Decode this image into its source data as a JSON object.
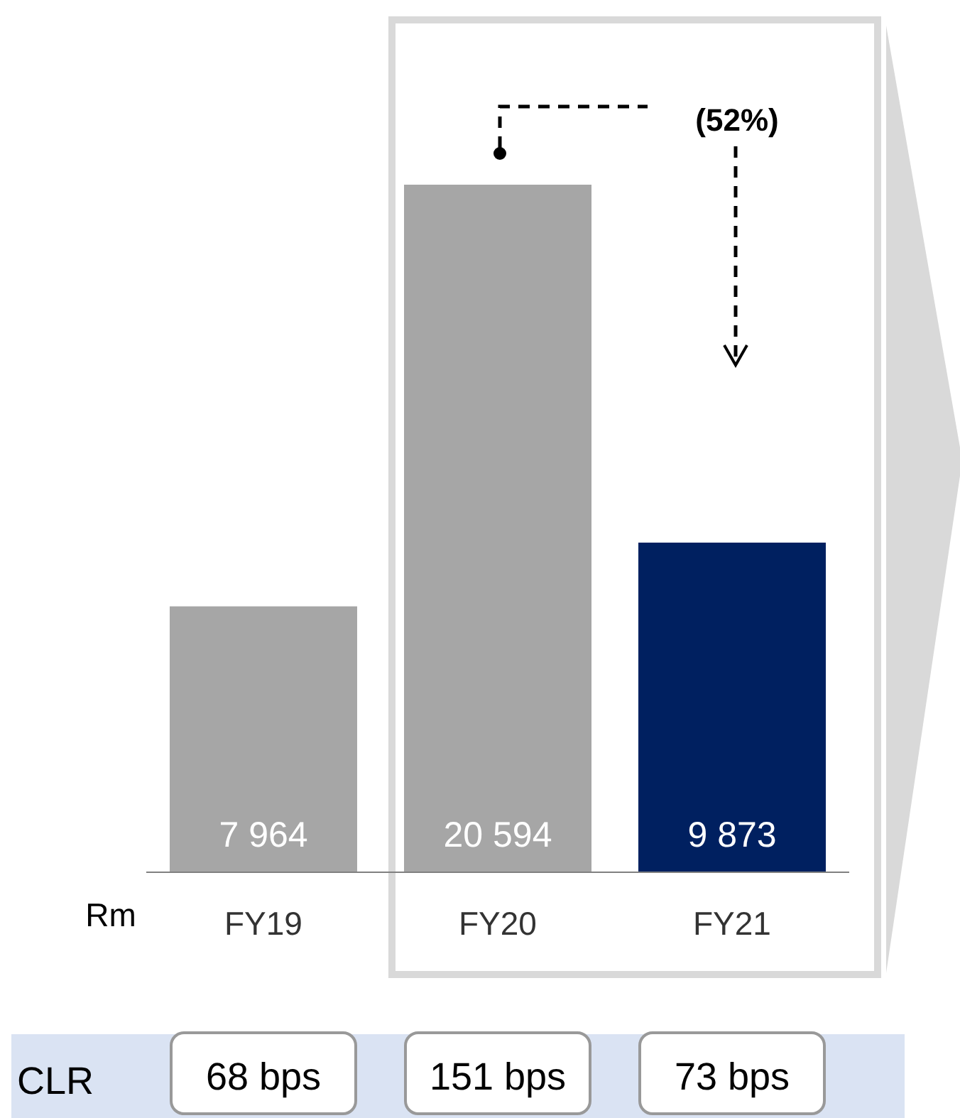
{
  "chart_data": {
    "type": "bar",
    "ylabel": "Rm",
    "categories": [
      "FY19",
      "FY20",
      "FY21"
    ],
    "values": [
      7964,
      20594,
      9873
    ],
    "colors": [
      "#a6a6a6",
      "#a6a6a6",
      "#002060"
    ],
    "data_labels": true,
    "value_labels": [
      "7 964",
      "20 594",
      "9 873"
    ],
    "annotations": [
      "(52%)",
      "CLR",
      "68 bps",
      "151 bps",
      "73 bps"
    ]
  }
}
